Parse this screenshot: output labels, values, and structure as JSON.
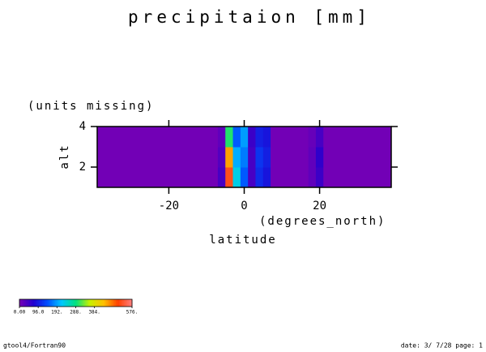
{
  "chart_data": {
    "type": "heatmap",
    "title": "precipitaion [mm]",
    "subtitle": "(units missing)",
    "y_label": "alt",
    "x_units": "(degrees_north)",
    "x_label": "latitude",
    "x": [
      -38,
      -36,
      -34,
      -32,
      -30,
      -28,
      -26,
      -24,
      -22,
      -20,
      -18,
      -16,
      -14,
      -12,
      -10,
      -8,
      -6,
      -4,
      -2,
      0,
      2,
      4,
      6,
      8,
      10,
      12,
      14,
      16,
      18,
      20,
      22,
      24,
      26,
      28,
      30,
      32,
      34,
      36,
      38
    ],
    "y": [
      1.5,
      2.5,
      3.5
    ],
    "z": [
      [
        5,
        5,
        5,
        5,
        5,
        5,
        5,
        5,
        5,
        5,
        5,
        5,
        5,
        5,
        5,
        5,
        40,
        520,
        230,
        150,
        40,
        110,
        90,
        5,
        5,
        5,
        5,
        5,
        20,
        50,
        5,
        5,
        5,
        5,
        5,
        5,
        5,
        5,
        5
      ],
      [
        5,
        5,
        5,
        5,
        5,
        5,
        5,
        5,
        5,
        5,
        5,
        5,
        5,
        5,
        5,
        5,
        30,
        450,
        200,
        170,
        40,
        120,
        100,
        5,
        5,
        5,
        5,
        5,
        20,
        60,
        5,
        5,
        5,
        5,
        5,
        5,
        5,
        5,
        5
      ],
      [
        5,
        5,
        5,
        5,
        5,
        5,
        5,
        5,
        5,
        5,
        5,
        5,
        5,
        5,
        5,
        5,
        20,
        300,
        150,
        190,
        50,
        100,
        90,
        5,
        5,
        5,
        5,
        5,
        15,
        40,
        5,
        5,
        5,
        5,
        5,
        5,
        5,
        5,
        5
      ]
    ],
    "xlim": [
      -39,
      39
    ],
    "xticks": [
      -20,
      0,
      20
    ],
    "ylim": [
      1,
      4
    ],
    "yticks": [
      2,
      4
    ],
    "clim": [
      0,
      576
    ],
    "colors": [
      "#7800b4",
      "#2000d0",
      "#0050ff",
      "#00c8ff",
      "#00e080",
      "#c8f000",
      "#ffc000",
      "#ff4000",
      "#ff8080"
    ],
    "cticks": [
      {
        "value": 0,
        "label": "0.00"
      },
      {
        "value": 96,
        "label": "96.0"
      },
      {
        "value": 192,
        "label": "192."
      },
      {
        "value": 288,
        "label": "288."
      },
      {
        "value": 384,
        "label": "384."
      },
      {
        "value": 576,
        "label": "576."
      }
    ],
    "footer_left": "gtool4/Fortran90",
    "footer_right": "date: 3/ 7/28 page: 1"
  }
}
